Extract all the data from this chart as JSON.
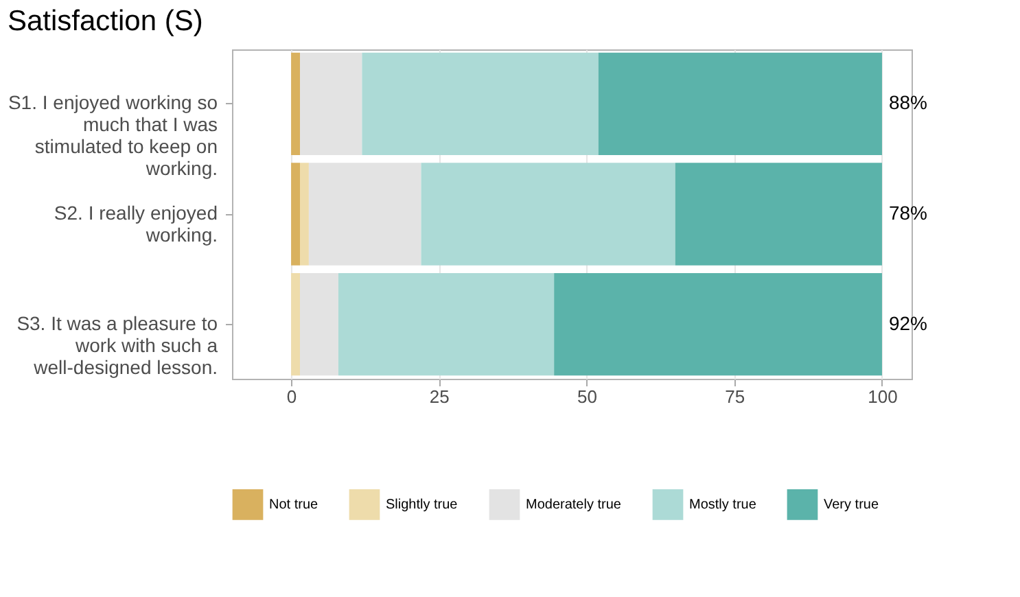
{
  "chart_data": {
    "type": "bar",
    "orientation": "horizontal",
    "stacked": true,
    "title": "Satisfaction (S)",
    "categories": [
      "S1. I enjoyed working so much that I was stimulated to keep on working.",
      "S2. I really enjoyed working.",
      "S3. It was a pleasure to work with such a well-designed lesson."
    ],
    "series": [
      {
        "name": "Not true",
        "color": "#d9b15f",
        "values": [
          1.5,
          1.5,
          0
        ]
      },
      {
        "name": "Slightly true",
        "color": "#eedcab",
        "values": [
          0,
          1.5,
          1.5
        ]
      },
      {
        "name": "Moderately true",
        "color": "#e3e3e3",
        "values": [
          10.5,
          19,
          6.5
        ]
      },
      {
        "name": "Mostly true",
        "color": "#acdad6",
        "values": [
          40,
          43,
          36.5
        ]
      },
      {
        "name": "Very true",
        "color": "#5bb3aa",
        "values": [
          48,
          35,
          55.5
        ]
      }
    ],
    "annotations": [
      "88%",
      "78%",
      "92%"
    ],
    "xlim": [
      -10,
      105
    ],
    "xticks": [
      0,
      25,
      50,
      75,
      100
    ],
    "grid": "x",
    "legend": "bottom"
  }
}
